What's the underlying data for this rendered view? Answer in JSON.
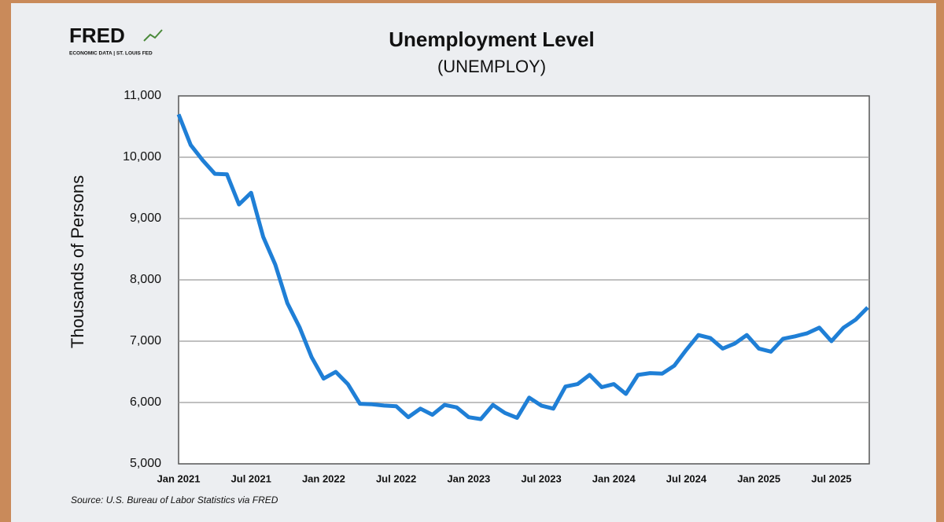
{
  "chart_data": {
    "type": "line",
    "title": "Unemployment Level",
    "subtitle": "(UNEMPLOY)",
    "logo": "FRED",
    "logo_tagline": "ECONOMIC DATA  |  ST. LOUIS FED",
    "ylabel": "Thousands of Persons",
    "source": "Source: U.S. Bureau of Labor Statistics via FRED",
    "color": "#1f7fd6",
    "grid": true,
    "ylim": [
      5000,
      11000
    ],
    "yticks": [
      {
        "value": 5000,
        "label": "5,000"
      },
      {
        "value": 6000,
        "label": "6,000"
      },
      {
        "value": 7000,
        "label": "7,000"
      },
      {
        "value": 8000,
        "label": "8,000"
      },
      {
        "value": 9000,
        "label": "9,000"
      },
      {
        "value": 10000,
        "label": "10,000"
      },
      {
        "value": 11000,
        "label": "11,000"
      }
    ],
    "categories": [
      "Jan 2021",
      null,
      null,
      null,
      null,
      null,
      "Jul 2021",
      null,
      null,
      null,
      null,
      null,
      "Jan 2022",
      null,
      null,
      null,
      null,
      null,
      "Jul 2022",
      null,
      null,
      null,
      null,
      null,
      "Jan 2023",
      null,
      null,
      null,
      null,
      null,
      "Jul 2023",
      null,
      null,
      null,
      null,
      null,
      "Jan 2024",
      null,
      null,
      null,
      null,
      null,
      "Jul 2024",
      null,
      null,
      null,
      null,
      null,
      "Jan 2025",
      null,
      null,
      null,
      null,
      null,
      "Jul 2025",
      null,
      null,
      null
    ],
    "values": [
      10700,
      10200,
      9950,
      9730,
      9720,
      9230,
      9420,
      8700,
      8250,
      7620,
      7230,
      6740,
      6390,
      6500,
      6300,
      5980,
      5970,
      5950,
      5940,
      5760,
      5900,
      5800,
      5960,
      5920,
      5760,
      5730,
      5960,
      5830,
      5750,
      6080,
      5950,
      5900,
      6260,
      6300,
      6450,
      6250,
      6300,
      6140,
      6450,
      6480,
      6470,
      6600,
      6860,
      7100,
      7050,
      6880,
      6960,
      7100,
      6880,
      6830,
      7040,
      7080,
      7130,
      7220,
      7000,
      7220,
      7350,
      7550
    ]
  }
}
